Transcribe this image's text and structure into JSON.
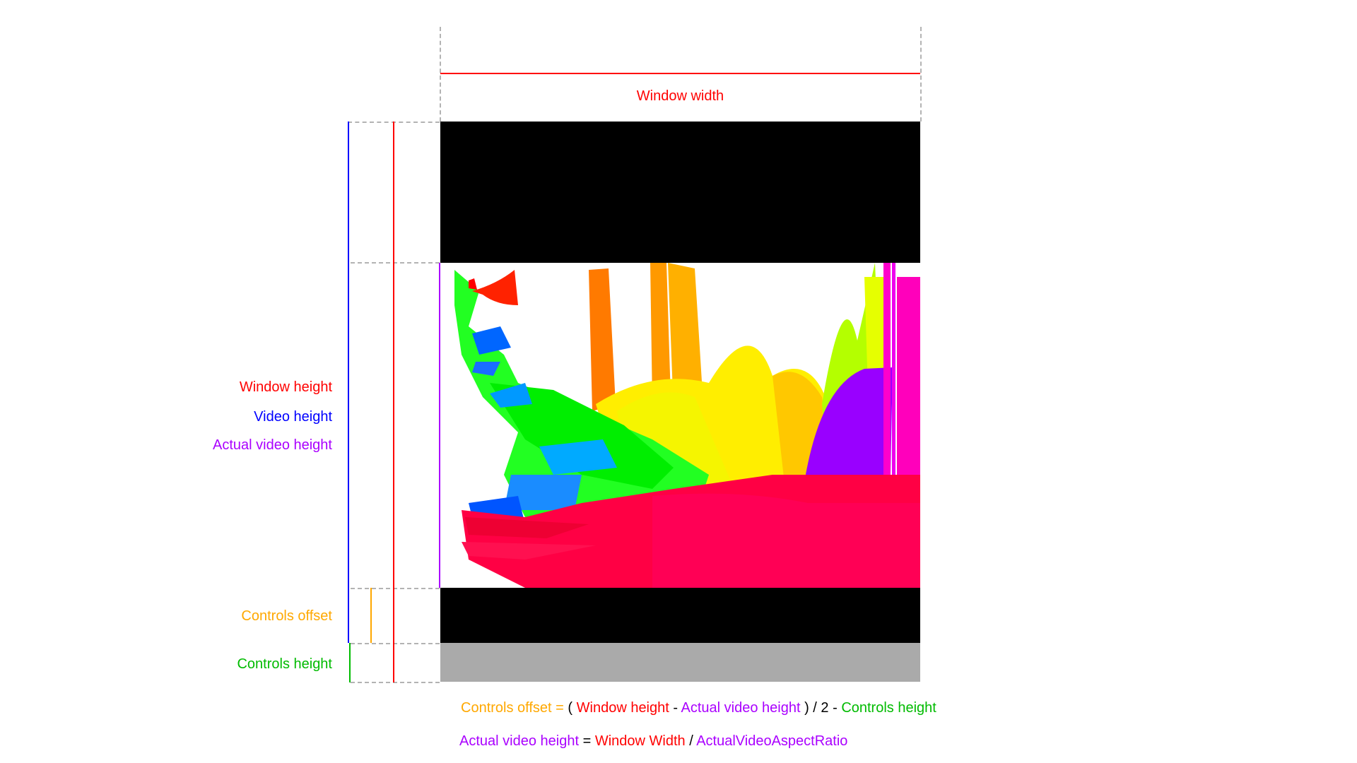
{
  "labels": {
    "window_width": "Window width",
    "window_height": "Window height",
    "video_height": "Video height",
    "actual_video_height": "Actual video height",
    "controls_offset": "Controls offset",
    "controls_height": "Controls height"
  },
  "formulas": {
    "controls_offset": {
      "t1": "Controls offset =",
      "t2": "(",
      "t3": "Window height",
      "t4": "-",
      "t5": "Actual video height",
      "t6": ") / 2 -",
      "t7": "Controls height"
    },
    "actual_video_height": {
      "t1": "Actual video height",
      "t2": "=",
      "t3": "Window Width",
      "t4": "/",
      "t5": "ActualVideoAspectRatio"
    }
  },
  "colors": {
    "window": "#ff0000",
    "video": "#0000ff",
    "actual_video": "#aa00ff",
    "controls_offset": "#ffa800",
    "controls_height": "#00bb00",
    "letterbox": "#000000",
    "controls_bar": "#aaaaaa",
    "guide": "#b3b3b3"
  },
  "icons": {
    "video_frame": "colorful-abstract-video-frame"
  }
}
